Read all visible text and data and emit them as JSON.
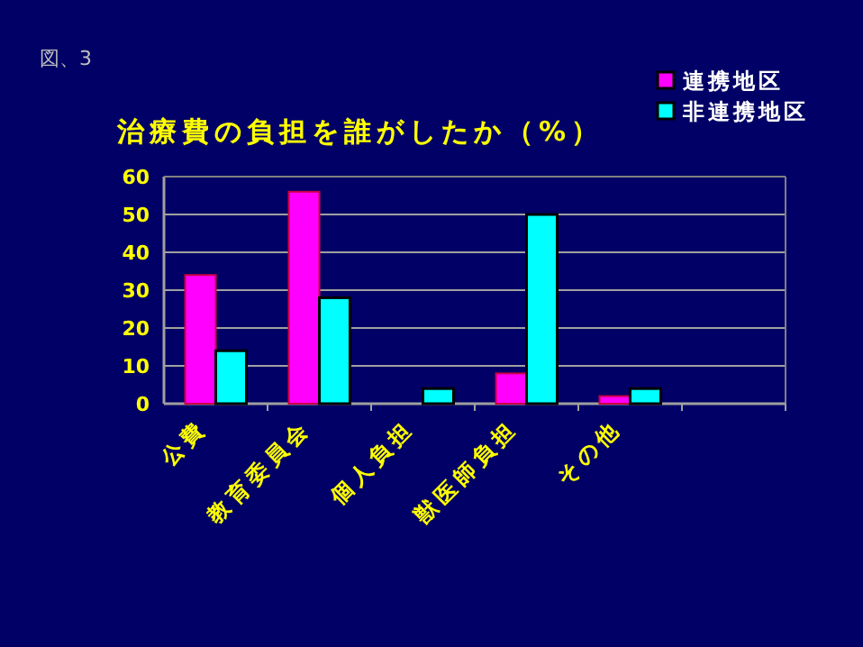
{
  "chart_data": {
    "type": "bar",
    "title": "治療費の負担を誰がしたか（%）",
    "annotations": [
      "図、3"
    ],
    "categories": [
      "公費",
      "教育委員会",
      "個人負担",
      "獣医師負担",
      "その他",
      null
    ],
    "series": [
      {
        "name": "連携地区",
        "color": "#ff00ff",
        "values": [
          34,
          56,
          0,
          8,
          2,
          null
        ]
      },
      {
        "name": "非連携地区",
        "color": "#00ffff",
        "values": [
          14,
          28,
          4,
          50,
          4,
          null
        ]
      }
    ],
    "ylim": [
      0,
      60
    ],
    "yticks": [
      0,
      10,
      20,
      30,
      40,
      50,
      60
    ],
    "grid": "y",
    "legend": "top right"
  }
}
